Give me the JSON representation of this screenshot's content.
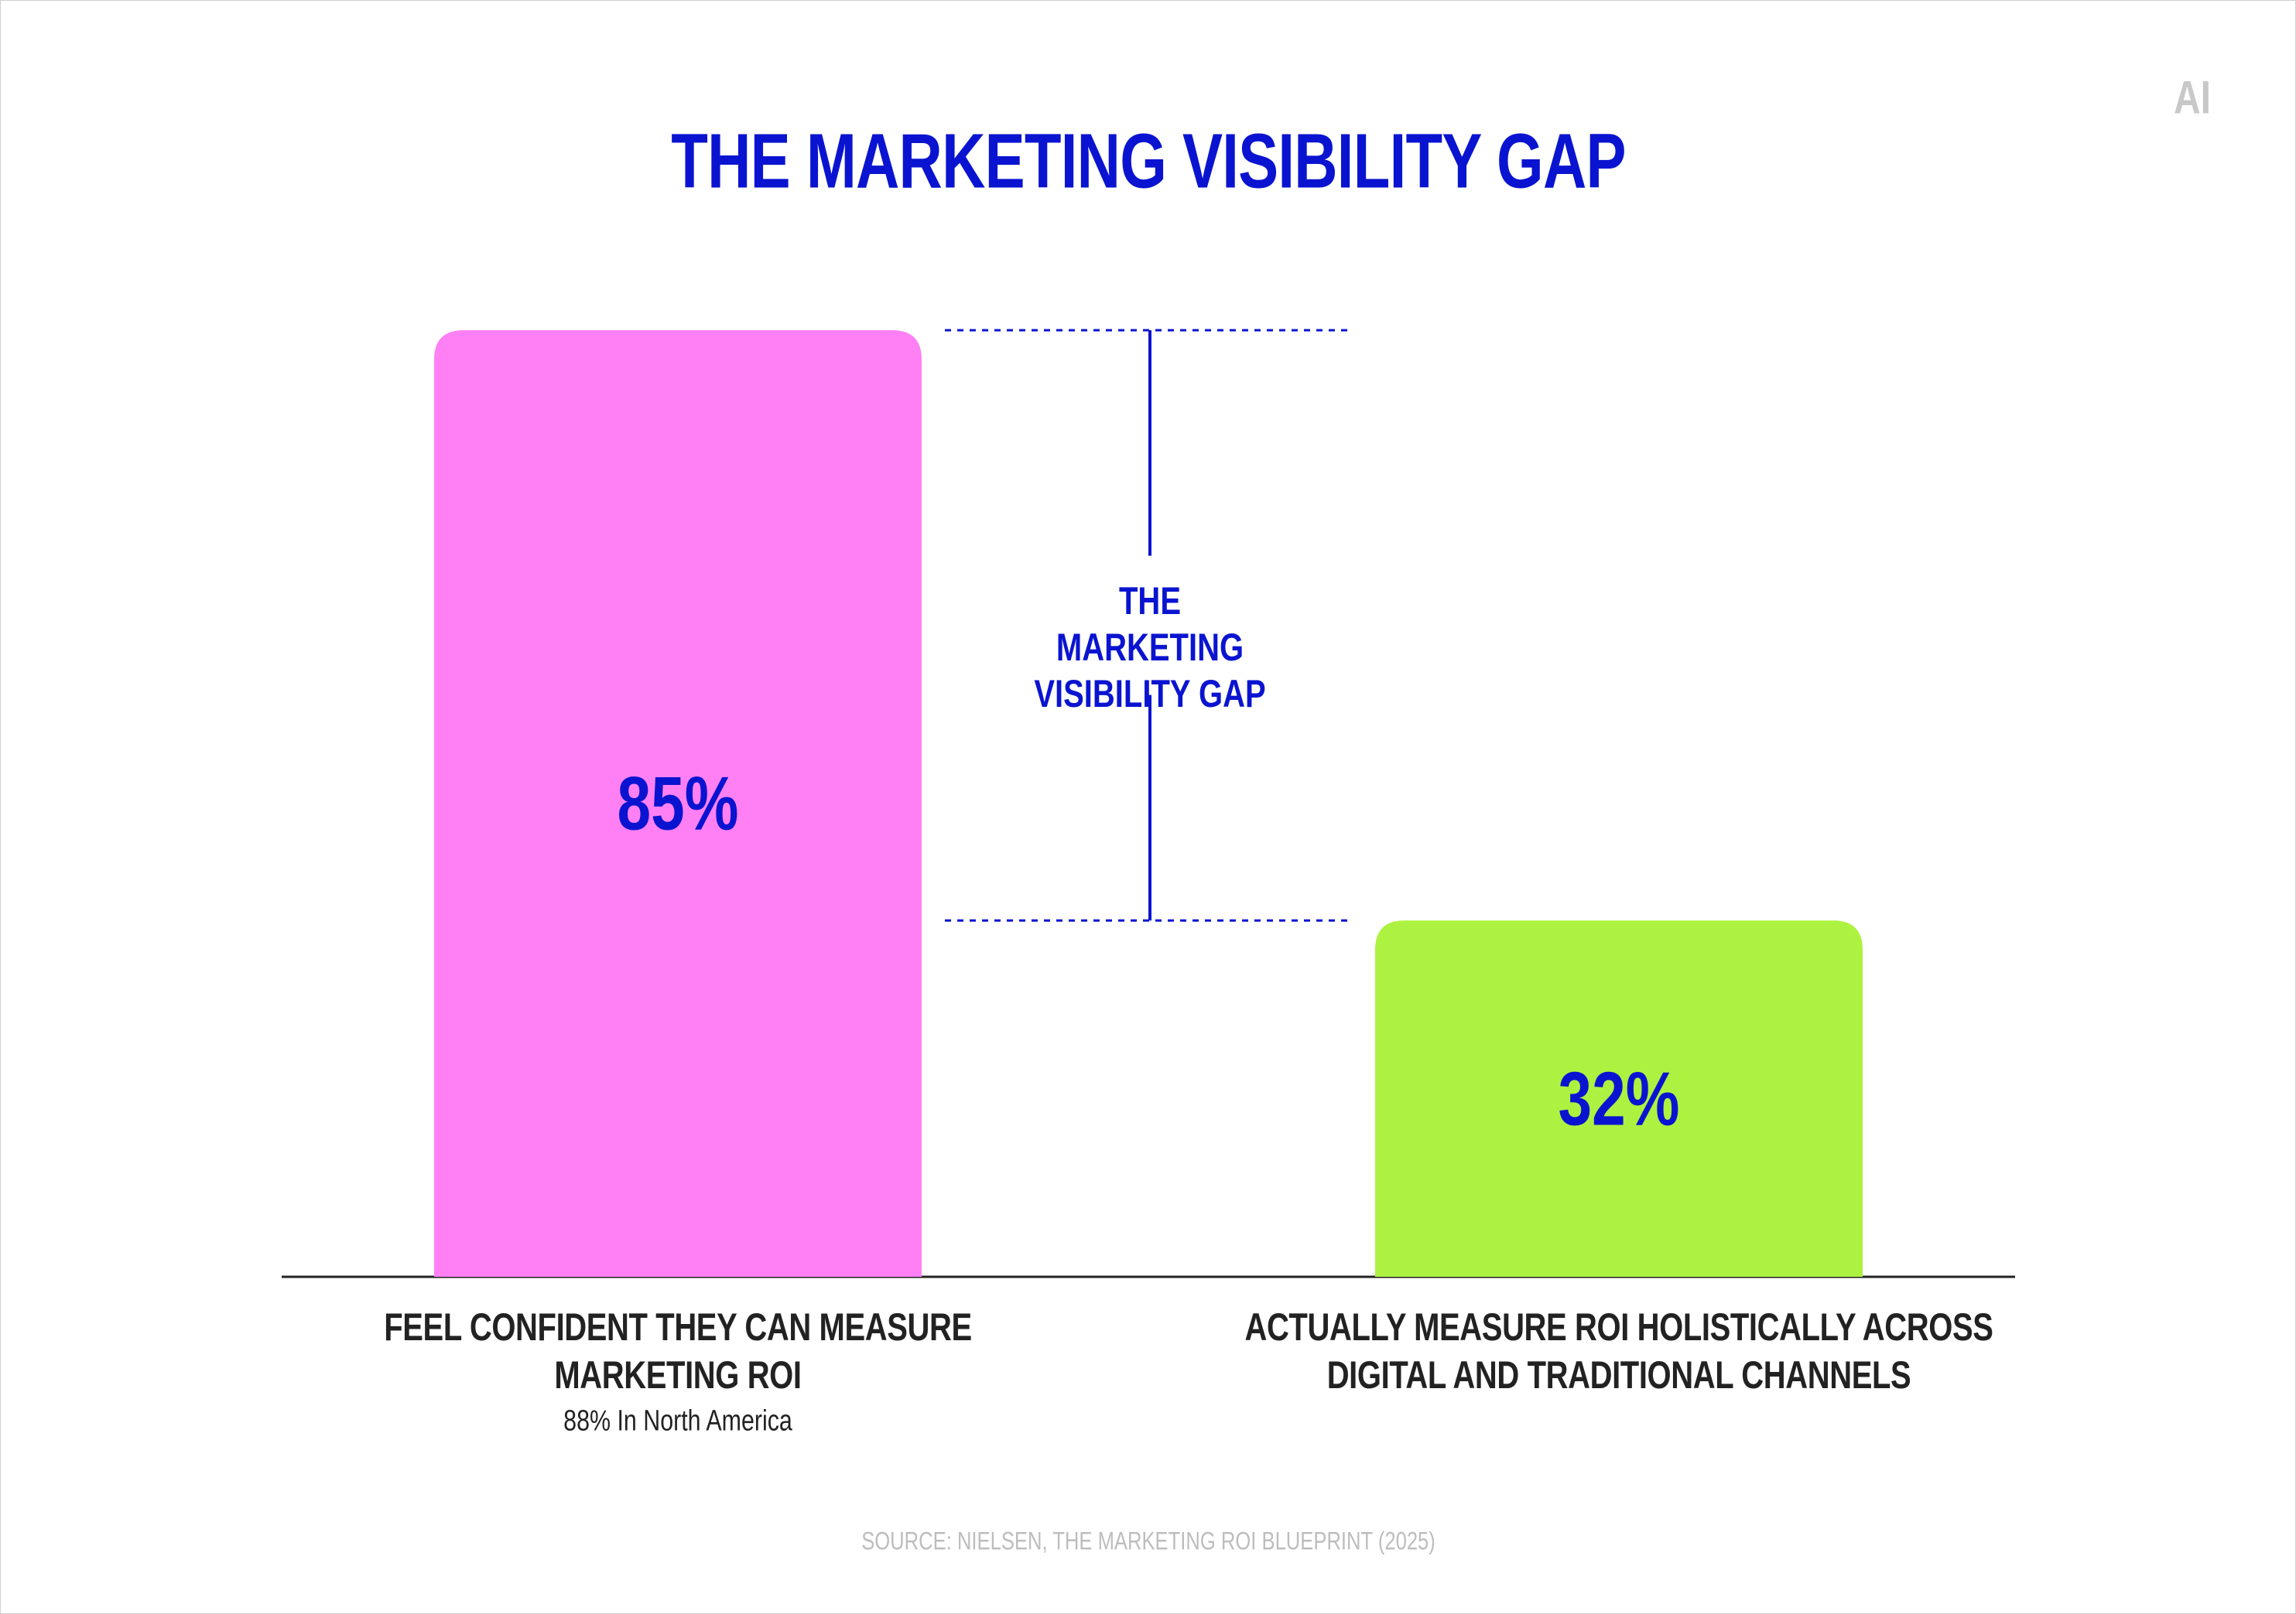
{
  "chart_data": {
    "type": "bar",
    "title": "THE MARKETING VISIBILITY GAP",
    "logo": "AI",
    "categories": [
      "FEEL CONFIDENT THEY CAN MEASURE MARKETING ROI",
      "ACTUALLY MEASURE ROI HOLISTICALLY ACROSS DIGITAL AND TRADITIONAL CHANNELS"
    ],
    "values": [
      85,
      32
    ],
    "value_labels": [
      "85%",
      "32%"
    ],
    "colors": [
      "#ff80f5",
      "#adf240"
    ],
    "annotation": "88% In North America",
    "gap_label": "THE MARKETING VISIBILITY GAP",
    "source": "SOURCE: NIELSEN, THE MARKETING ROI BLUEPRINT (2025)"
  }
}
